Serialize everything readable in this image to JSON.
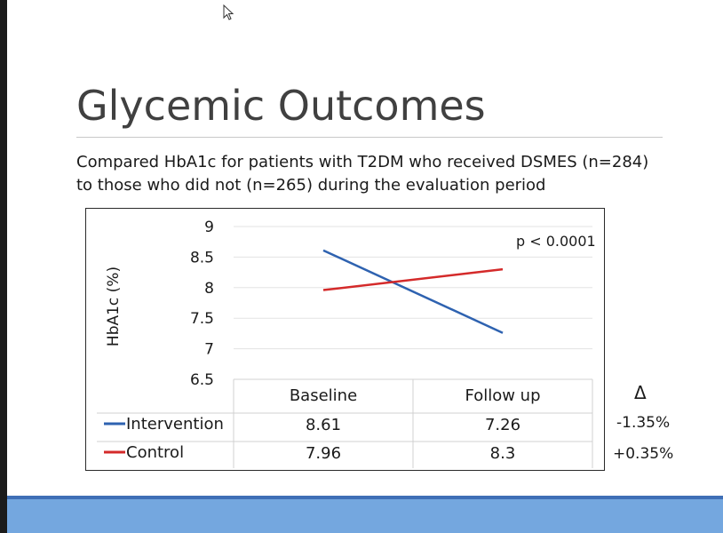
{
  "slide": {
    "title": "Glycemic Outcomes",
    "subtitle_line1": "Compared HbA1c for patients with T2DM who received DSMES (n=284)",
    "subtitle_line2": "to those who did not (n=265) during the evaluation period"
  },
  "delta": {
    "header": "Δ",
    "values": [
      "-1.35%",
      "+0.35%"
    ]
  },
  "colors": {
    "intervention": "#2e62b0",
    "control": "#d42a2a",
    "bottom_bar": "#74a7df",
    "bottom_line": "#3f6fb6"
  },
  "chart_data": {
    "type": "line",
    "categories": [
      "Baseline",
      "Follow up"
    ],
    "series": [
      {
        "name": "Intervention",
        "values": [
          8.61,
          7.26
        ],
        "value_labels": [
          "8.61",
          "7.26"
        ]
      },
      {
        "name": "Control",
        "values": [
          7.96,
          8.3
        ],
        "value_labels": [
          "7.96",
          "8.3"
        ]
      }
    ],
    "ylabel": "HbA1c (%)",
    "ylim": [
      6.5,
      9
    ],
    "yticks": [
      9,
      8.5,
      8,
      7.5,
      7,
      6.5
    ],
    "ytick_labels": [
      "9",
      "8.5",
      "8",
      "7.5",
      "7",
      "6.5"
    ],
    "annotation": "p < 0.0001",
    "grid": true,
    "legend": "data-table-below"
  }
}
